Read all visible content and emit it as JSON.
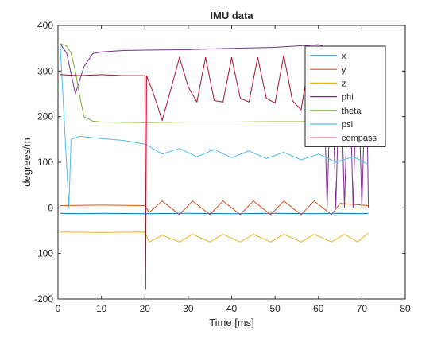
{
  "chart_data": {
    "type": "line",
    "title": "IMU data",
    "xlabel": "Time [ms]",
    "ylabel": "degrees/m",
    "xlim": [
      0,
      80
    ],
    "ylim": [
      -200,
      400
    ],
    "xticks": [
      0,
      10,
      20,
      30,
      40,
      50,
      60,
      70,
      80
    ],
    "yticks": [
      -200,
      -100,
      0,
      100,
      200,
      300,
      400
    ],
    "grid": false,
    "legend_position": "top-right",
    "series": [
      {
        "name": "x",
        "color": "#0072BD",
        "x": [
          0.5,
          5,
          10,
          20,
          30,
          40,
          50,
          60,
          65,
          70,
          71.5
        ],
        "y": [
          -12,
          -13,
          -12,
          -13,
          -12,
          -13,
          -12,
          -13,
          -12,
          -13,
          -12
        ]
      },
      {
        "name": "y",
        "color": "#D95319",
        "x": [
          0.5,
          10,
          20,
          21,
          24,
          28,
          31,
          35,
          38,
          42,
          45,
          49,
          52,
          56,
          59,
          63,
          65,
          71.5
        ],
        "y": [
          5,
          6,
          5,
          -10,
          15,
          -15,
          15,
          -15,
          15,
          -15,
          15,
          -15,
          15,
          -15,
          15,
          -15,
          10,
          5
        ]
      },
      {
        "name": "z",
        "color": "#EDB120",
        "x": [
          0.5,
          10,
          20,
          21,
          24,
          28,
          31,
          35,
          38,
          42,
          45,
          49,
          52,
          56,
          59,
          63,
          66,
          69,
          71.5
        ],
        "y": [
          -53,
          -54,
          -53,
          -75,
          -60,
          -75,
          -58,
          -75,
          -58,
          -75,
          -58,
          -75,
          -58,
          -75,
          -58,
          -75,
          -58,
          -75,
          -55
        ]
      },
      {
        "name": "phi",
        "color": "#7E2F8E",
        "x": [
          0.5,
          2,
          4,
          6,
          8,
          10,
          15,
          20,
          30,
          40,
          50,
          55,
          60,
          61,
          62,
          63,
          64,
          65,
          66,
          67,
          68,
          69,
          70,
          71,
          71.5
        ],
        "y": [
          360,
          340,
          250,
          310,
          338,
          342,
          345,
          346,
          347,
          350,
          352,
          355,
          358,
          355,
          0,
          350,
          0,
          355,
          0,
          350,
          0,
          352,
          0,
          350,
          0
        ]
      },
      {
        "name": "theta",
        "color": "#77AC30",
        "x": [
          0.5,
          2,
          3,
          4,
          5,
          6,
          8,
          10,
          20,
          30,
          40,
          50,
          60,
          70,
          71.5
        ],
        "y": [
          360,
          355,
          340,
          300,
          245,
          200,
          190,
          188,
          187,
          188,
          188,
          189,
          189,
          190,
          190
        ]
      },
      {
        "name": "psi",
        "color": "#4DBEEE",
        "x": [
          0.5,
          2.5,
          3,
          5,
          7,
          10,
          15,
          20,
          24,
          28,
          32,
          36,
          40,
          44,
          48,
          52,
          56,
          60,
          64,
          68,
          71.5
        ],
        "y": [
          360,
          0,
          150,
          157,
          155,
          152,
          148,
          140,
          118,
          130,
          112,
          128,
          110,
          125,
          108,
          122,
          105,
          118,
          100,
          112,
          95
        ]
      },
      {
        "name": "compass",
        "color": "#A2142F",
        "x": [
          0.5,
          5,
          10,
          15,
          20,
          20.2,
          20.4,
          22,
          24,
          26,
          28,
          30,
          32,
          34,
          36,
          38,
          40,
          42,
          44,
          46,
          48,
          50,
          52,
          54,
          56,
          58,
          60,
          62
        ],
        "y": [
          292,
          290,
          292,
          290,
          290,
          -180,
          290,
          250,
          192,
          260,
          330,
          265,
          232,
          330,
          235,
          232,
          330,
          240,
          232,
          330,
          240,
          230,
          335,
          235,
          215,
          330,
          300,
          292
        ]
      }
    ]
  }
}
